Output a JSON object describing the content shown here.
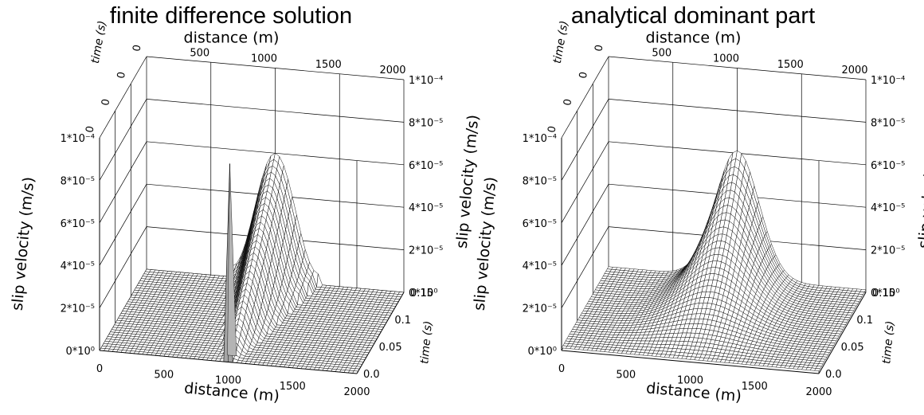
{
  "chart_data": [
    {
      "type": "surface",
      "title": "finite difference solution",
      "surface_kind": "numerical",
      "xlabel": "distance (m)",
      "ylabel": "time (s)",
      "zlabel": "slip velocity (m/s)",
      "x_ticks": [
        "0",
        "500",
        "1000",
        "1500",
        "2000"
      ],
      "y_ticks": [
        "0.0",
        "0.05",
        "0.1",
        "0.15"
      ],
      "z_ticks_left": [
        "0*10⁰",
        "2*10⁻⁵",
        "4*10⁻⁵",
        "6*10⁻⁵",
        "8*10⁻⁵",
        "1*10⁻⁴"
      ],
      "z_ticks_right": [
        "0*10⁰",
        "2*10⁻⁵",
        "4*10⁻⁵",
        "6*10⁻⁵",
        "8*10⁻⁵",
        "1*10⁻⁴"
      ],
      "back_time_ticks": [
        "0",
        "0",
        "0",
        "0"
      ],
      "xlim": [
        0,
        2000
      ],
      "ylim": [
        0,
        0.15
      ],
      "zlim": [
        0,
        0.0001
      ],
      "peak": {
        "x": 1000,
        "t": 0.15,
        "z": 6e-05
      },
      "spike": {
        "x": 1000,
        "t": 0.005,
        "z": 9.2e-05
      }
    },
    {
      "type": "surface",
      "title": "analytical dominant part",
      "surface_kind": "analytical",
      "xlabel": "distance (m)",
      "ylabel": "time (s)",
      "zlabel": "slip velocity (m/s)",
      "x_ticks": [
        "0",
        "500",
        "1000",
        "1500",
        "2000"
      ],
      "y_ticks": [
        "0.0",
        "0.05",
        "0.1",
        "0.15"
      ],
      "z_ticks_left": [
        "0*10⁰",
        "2*10⁻⁵",
        "4*10⁻⁵",
        "6*10⁻⁵",
        "8*10⁻⁵",
        "1*10⁻⁴"
      ],
      "z_ticks_right": [
        "0*10⁰",
        "2*10⁻⁵",
        "4*10⁻⁵",
        "6*10⁻⁵",
        "8*10⁻⁵",
        "1*10⁻⁴"
      ],
      "back_time_ticks": [
        "0",
        "0",
        "0",
        "0"
      ],
      "xlim": [
        0,
        2000
      ],
      "ylim": [
        0,
        0.15
      ],
      "zlim": [
        0,
        0.0001
      ],
      "peak": {
        "x": 1000,
        "t": 0.15,
        "z": 6e-05
      }
    }
  ]
}
